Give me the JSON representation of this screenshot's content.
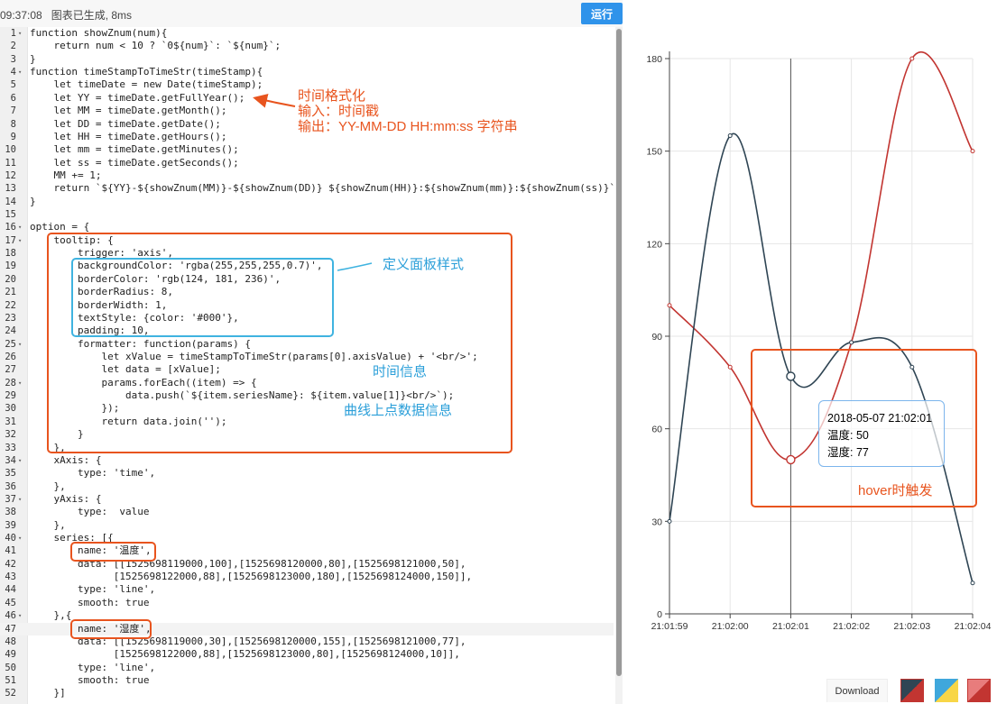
{
  "toolbar": {
    "status": "09:37:08   图表已生成, 8ms",
    "run_label": "运行"
  },
  "editor": {
    "lines": [
      {
        "n": "1",
        "fold": true,
        "code": "function showZnum(num){"
      },
      {
        "n": "2",
        "code": "    return num < 10 ? `0${num}`: `${num}`;"
      },
      {
        "n": "3",
        "code": "}"
      },
      {
        "n": "4",
        "fold": true,
        "code": "function timeStampToTimeStr(timeStamp){"
      },
      {
        "n": "5",
        "code": "    let timeDate = new Date(timeStamp);"
      },
      {
        "n": "6",
        "code": "    let YY = timeDate.getFullYear();"
      },
      {
        "n": "7",
        "code": "    let MM = timeDate.getMonth();"
      },
      {
        "n": "8",
        "code": "    let DD = timeDate.getDate();"
      },
      {
        "n": "9",
        "code": "    let HH = timeDate.getHours();"
      },
      {
        "n": "10",
        "code": "    let mm = timeDate.getMinutes();"
      },
      {
        "n": "11",
        "code": "    let ss = timeDate.getSeconds();"
      },
      {
        "n": "12",
        "code": "    MM += 1;"
      },
      {
        "n": "13",
        "code": "    return `${YY}-${showZnum(MM)}-${showZnum(DD)} ${showZnum(HH)}:${showZnum(mm)}:${showZnum(ss)}`;"
      },
      {
        "n": "14",
        "code": "}"
      },
      {
        "n": "15",
        "code": ""
      },
      {
        "n": "16",
        "fold": true,
        "code": "option = {"
      },
      {
        "n": "17",
        "fold": true,
        "code": "    tooltip: {"
      },
      {
        "n": "18",
        "code": "        trigger: 'axis',"
      },
      {
        "n": "19",
        "code": "        backgroundColor: 'rgba(255,255,255,0.7)',"
      },
      {
        "n": "20",
        "code": "        borderColor: 'rgb(124, 181, 236)',"
      },
      {
        "n": "21",
        "code": "        borderRadius: 8,"
      },
      {
        "n": "22",
        "code": "        borderWidth: 1,"
      },
      {
        "n": "23",
        "code": "        textStyle: {color: '#000'},"
      },
      {
        "n": "24",
        "code": "        padding: 10,"
      },
      {
        "n": "25",
        "fold": true,
        "code": "        formatter: function(params) {"
      },
      {
        "n": "26",
        "code": "            let xValue = timeStampToTimeStr(params[0].axisValue) + '<br/>';"
      },
      {
        "n": "27",
        "code": "            let data = [xValue];"
      },
      {
        "n": "28",
        "fold": true,
        "code": "            params.forEach((item) => {"
      },
      {
        "n": "29",
        "code": "                data.push(`${item.seriesName}: ${item.value[1]}<br/>`);"
      },
      {
        "n": "30",
        "code": "            });"
      },
      {
        "n": "31",
        "code": "            return data.join('');"
      },
      {
        "n": "32",
        "code": "        }"
      },
      {
        "n": "33",
        "code": "    },"
      },
      {
        "n": "34",
        "fold": true,
        "code": "    xAxis: {"
      },
      {
        "n": "35",
        "code": "        type: 'time',"
      },
      {
        "n": "36",
        "code": "    },"
      },
      {
        "n": "37",
        "fold": true,
        "code": "    yAxis: {"
      },
      {
        "n": "38",
        "code": "        type:  value"
      },
      {
        "n": "39",
        "code": "    },"
      },
      {
        "n": "40",
        "fold": true,
        "code": "    series: [{"
      },
      {
        "n": "41",
        "code": "        name: '温度',"
      },
      {
        "n": "42",
        "code": "        data: [[1525698119000,100],[1525698120000,80],[1525698121000,50],"
      },
      {
        "n": "43",
        "code": "              [1525698122000,88],[1525698123000,180],[1525698124000,150]],"
      },
      {
        "n": "44",
        "code": "        type: 'line',"
      },
      {
        "n": "45",
        "code": "        smooth: true"
      },
      {
        "n": "46",
        "fold": true,
        "code": "    },{"
      },
      {
        "n": "47",
        "active": true,
        "code": "        name: '湿度',"
      },
      {
        "n": "48",
        "code": "        data: [[1525698119000,30],[1525698120000,155],[1525698121000,77],"
      },
      {
        "n": "49",
        "code": "              [1525698122000,88],[1525698123000,80],[1525698124000,10]],"
      },
      {
        "n": "50",
        "code": "        type: 'line',"
      },
      {
        "n": "51",
        "code": "        smooth: true"
      },
      {
        "n": "52",
        "code": "    }]"
      }
    ]
  },
  "annotations": {
    "time_format_lines": [
      "时间格式化",
      "输入：时间戳",
      "输出：YY-MM-DD HH:mm:ss 字符串"
    ],
    "panel_style": "定义面板样式",
    "time_info": "时间信息",
    "point_info": "曲线上点数据信息",
    "hover_trigger": "hover时触发"
  },
  "tooltip": {
    "time": "2018-05-07 21:02:01",
    "rows": [
      "温度: 50",
      "湿度: 77"
    ]
  },
  "chart_data": {
    "type": "line",
    "x": [
      "21:01:59",
      "21:02:00",
      "21:02:01",
      "21:02:02",
      "21:02:03",
      "21:02:04"
    ],
    "series": [
      {
        "name": "温度",
        "values": [
          100,
          80,
          50,
          88,
          180,
          150
        ],
        "color": "#c23531"
      },
      {
        "name": "湿度",
        "values": [
          30,
          155,
          77,
          88,
          80,
          10
        ],
        "color": "#2f4554"
      }
    ],
    "yticks": [
      "0",
      "30",
      "60",
      "90",
      "120",
      "150",
      "180"
    ],
    "ylim": [
      0,
      180
    ],
    "smooth": true,
    "grid": true,
    "highlight_index": 2
  },
  "footer": {
    "download_label": "Download",
    "themes": [
      "red-dark",
      "blue-yellow",
      "red-light"
    ]
  },
  "colors": {
    "accent_blue": "#2f93ea",
    "annotation_red": "#e8541e",
    "annotation_blue": "#2b9fd9",
    "tooltip_border": "rgb(124,181,236)"
  }
}
